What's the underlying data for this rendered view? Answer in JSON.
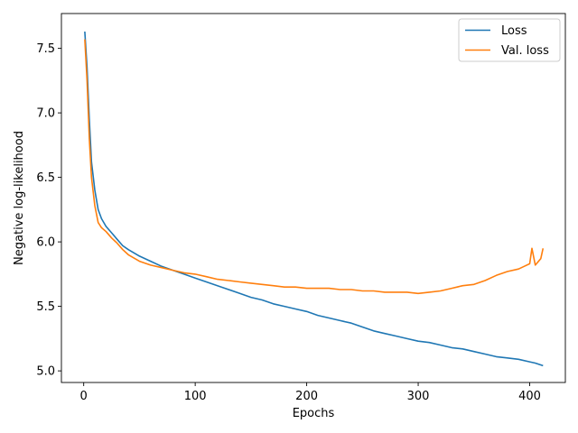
{
  "chart_data": {
    "type": "line",
    "xlabel": "Epochs",
    "ylabel": "Negative log-likelihood",
    "xlim": [
      -20,
      432
    ],
    "ylim": [
      4.91,
      7.77
    ],
    "xticks": [
      0,
      100,
      200,
      300,
      400
    ],
    "yticks": [
      5.0,
      5.5,
      6.0,
      6.5,
      7.0,
      7.5
    ],
    "legend_position": "top-right",
    "grid": false,
    "series": [
      {
        "name": "Loss",
        "color": "#1f77b4",
        "x": [
          1,
          3,
          5,
          7,
          10,
          13,
          16,
          20,
          25,
          30,
          35,
          40,
          50,
          60,
          70,
          80,
          90,
          100,
          110,
          120,
          130,
          140,
          150,
          160,
          170,
          180,
          190,
          200,
          210,
          220,
          230,
          240,
          250,
          260,
          270,
          280,
          290,
          300,
          310,
          320,
          330,
          340,
          350,
          360,
          370,
          380,
          390,
          400,
          405,
          412
        ],
        "y": [
          7.63,
          7.35,
          6.95,
          6.62,
          6.4,
          6.25,
          6.18,
          6.12,
          6.07,
          6.02,
          5.97,
          5.94,
          5.89,
          5.85,
          5.81,
          5.78,
          5.75,
          5.72,
          5.69,
          5.66,
          5.63,
          5.6,
          5.57,
          5.55,
          5.52,
          5.5,
          5.48,
          5.46,
          5.43,
          5.41,
          5.39,
          5.37,
          5.34,
          5.31,
          5.29,
          5.27,
          5.25,
          5.23,
          5.22,
          5.2,
          5.18,
          5.17,
          5.15,
          5.13,
          5.11,
          5.1,
          5.09,
          5.07,
          5.06,
          5.04
        ]
      },
      {
        "name": "Val. loss",
        "color": "#ff7f0e",
        "x": [
          1,
          3,
          5,
          7,
          10,
          13,
          16,
          20,
          25,
          30,
          35,
          40,
          50,
          60,
          70,
          80,
          90,
          100,
          110,
          120,
          130,
          140,
          150,
          160,
          170,
          180,
          190,
          200,
          210,
          220,
          230,
          240,
          250,
          260,
          270,
          280,
          290,
          300,
          310,
          320,
          330,
          340,
          350,
          360,
          370,
          380,
          390,
          395,
          400,
          402,
          405,
          410,
          412
        ],
        "y": [
          7.57,
          7.25,
          6.8,
          6.5,
          6.28,
          6.15,
          6.11,
          6.08,
          6.03,
          5.99,
          5.94,
          5.9,
          5.85,
          5.82,
          5.8,
          5.78,
          5.76,
          5.75,
          5.73,
          5.71,
          5.7,
          5.69,
          5.68,
          5.67,
          5.66,
          5.65,
          5.65,
          5.64,
          5.64,
          5.64,
          5.63,
          5.63,
          5.62,
          5.62,
          5.61,
          5.61,
          5.61,
          5.6,
          5.61,
          5.62,
          5.64,
          5.66,
          5.67,
          5.7,
          5.74,
          5.77,
          5.79,
          5.81,
          5.83,
          5.95,
          5.82,
          5.87,
          5.95
        ]
      }
    ]
  }
}
